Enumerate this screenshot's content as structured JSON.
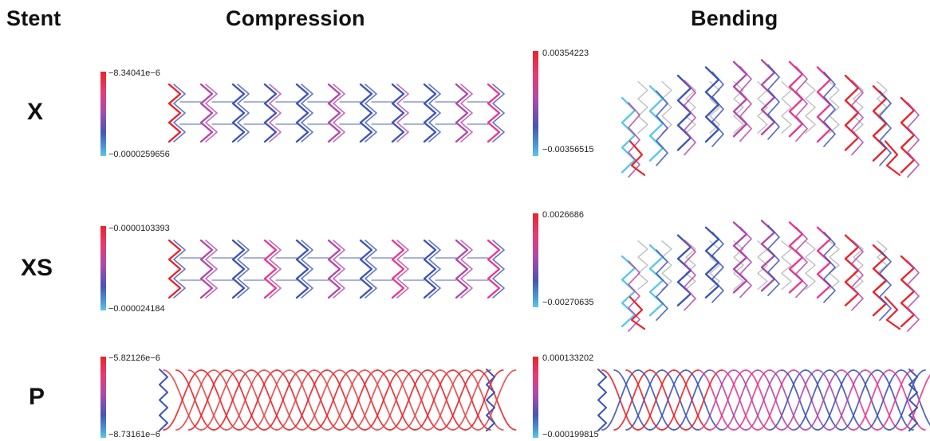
{
  "headers": {
    "stent": "Stent",
    "compression": "Compression",
    "bending": "Bending"
  },
  "rows": [
    {
      "label": "X",
      "compression": {
        "max": "−8.34041e−6",
        "min": "−0.0000259656"
      },
      "bending": {
        "max": "0.00354223",
        "min": "−0.00356515"
      }
    },
    {
      "label": "XS",
      "compression": {
        "max": "−0.0000103393",
        "min": "−0.000024184"
      },
      "bending": {
        "max": "0.0026686",
        "min": "−0.00270635"
      }
    },
    {
      "label": "P",
      "compression": {
        "max": "−5.82126e−6",
        "min": "−8.73161e−6"
      },
      "bending": {
        "max": "0.000133202",
        "min": "−0.000199815"
      }
    }
  ],
  "colors": {
    "red": "#e8252b",
    "pink": "#e83a8e",
    "magenta": "#b14aa8",
    "blue": "#3f55b5",
    "cyan": "#5cc6ec",
    "gray": "#b8b8b8"
  }
}
